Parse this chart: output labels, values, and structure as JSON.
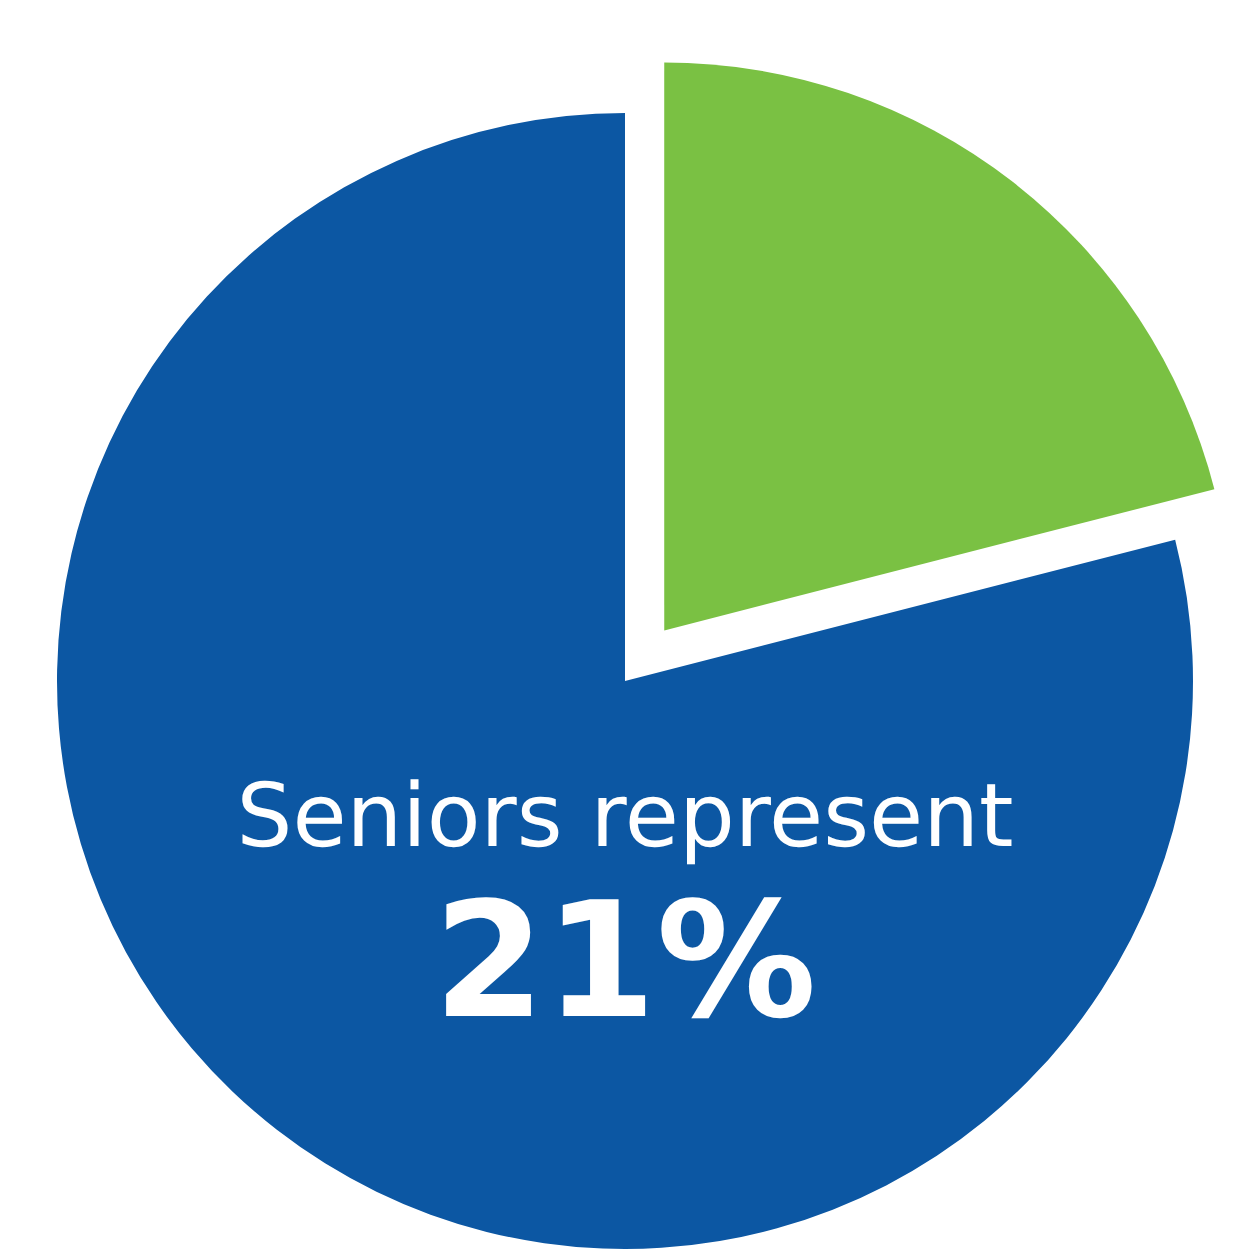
{
  "chart_data": {
    "type": "pie",
    "categories": [
      null,
      null
    ],
    "values": [
      21,
      79
    ],
    "colors": [
      "#7ac143",
      "#0c57a3"
    ],
    "annotations": [
      "Seniors represent",
      "21%"
    ]
  }
}
